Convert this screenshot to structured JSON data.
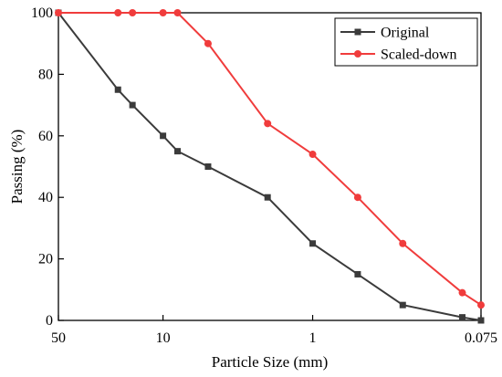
{
  "chart_data": {
    "type": "line",
    "xlabel": "Particle Size (mm)",
    "ylabel": "Passing (%)",
    "x_scale": "log",
    "x_reversed": true,
    "xlim": [
      50,
      0.075
    ],
    "ylim": [
      0,
      100
    ],
    "x_ticks": [
      50,
      10,
      1,
      0.075
    ],
    "x_tick_labels": [
      "50",
      "10",
      "1",
      "0.075"
    ],
    "y_ticks": [
      0,
      20,
      40,
      60,
      80,
      100
    ],
    "y_tick_labels": [
      "0",
      "20",
      "40",
      "60",
      "80",
      "100"
    ],
    "grid": false,
    "legend_position": "top-right",
    "series": [
      {
        "name": "Original",
        "color": "#3b3b3b",
        "marker": "square",
        "x": [
          50,
          20,
          16,
          10,
          8,
          5,
          2,
          1,
          0.5,
          0.25,
          0.1,
          0.075
        ],
        "y": [
          100,
          75,
          70,
          60,
          55,
          50,
          40,
          25,
          15,
          5,
          1,
          0
        ]
      },
      {
        "name": "Scaled-down",
        "color": "#f03c3c",
        "marker": "circle",
        "x": [
          50,
          20,
          16,
          10,
          8,
          5,
          2,
          1,
          0.5,
          0.25,
          0.1,
          0.075
        ],
        "y": [
          100,
          100,
          100,
          100,
          100,
          90,
          64,
          54,
          40,
          25,
          9,
          5
        ]
      }
    ]
  }
}
